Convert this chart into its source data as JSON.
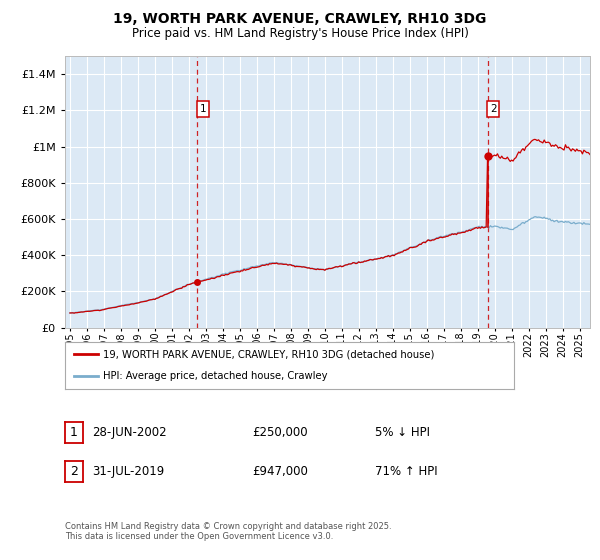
{
  "title": "19, WORTH PARK AVENUE, CRAWLEY, RH10 3DG",
  "subtitle": "Price paid vs. HM Land Registry's House Price Index (HPI)",
  "legend_label_red": "19, WORTH PARK AVENUE, CRAWLEY, RH10 3DG (detached house)",
  "legend_label_blue": "HPI: Average price, detached house, Crawley",
  "annotation1_label": "1",
  "annotation1_date": "28-JUN-2002",
  "annotation1_price": "£250,000",
  "annotation1_hpi": "5% ↓ HPI",
  "annotation2_label": "2",
  "annotation2_date": "31-JUL-2019",
  "annotation2_price": "£947,000",
  "annotation2_hpi": "71% ↑ HPI",
  "footnote": "Contains HM Land Registry data © Crown copyright and database right 2025.\nThis data is licensed under the Open Government Licence v3.0.",
  "sale1_year": 2002.49,
  "sale1_price": 250000,
  "sale2_year": 2019.58,
  "sale2_price": 947000,
  "ylim_max": 1500000,
  "xlim_min": 1994.7,
  "xlim_max": 2025.6,
  "plot_bg": "#dce9f5",
  "red_color": "#cc0000",
  "blue_color": "#7aadcc",
  "grid_color": "#ffffff",
  "dashed_color": "#cc0000",
  "start_year": 1995,
  "end_year": 2026
}
